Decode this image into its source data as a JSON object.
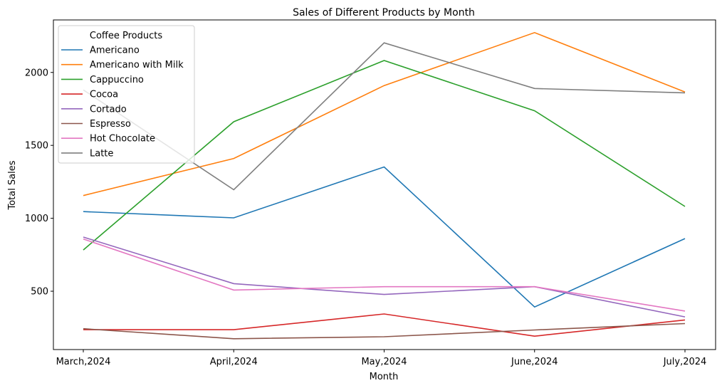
{
  "chart_data": {
    "type": "line",
    "title": "Sales of Different Products by Month",
    "xlabel": "Month",
    "ylabel": "Total Sales",
    "categories": [
      "March,2024",
      "April,2024",
      "May,2024",
      "June,2024",
      "July,2024"
    ],
    "ylim": [
      100,
      2360
    ],
    "yticks": [
      500,
      1000,
      1500,
      2000
    ],
    "grid": false,
    "legend": {
      "title": "Coffee Products",
      "placement": "upper-left"
    },
    "series": [
      {
        "name": "Americano",
        "color": "#1f77b4",
        "values": [
          1046,
          1003,
          1352,
          392,
          861
        ]
      },
      {
        "name": "Americano with Milk",
        "color": "#ff7f0e",
        "values": [
          1156,
          1410,
          1910,
          2273,
          1866
        ]
      },
      {
        "name": "Cappuccino",
        "color": "#2ca02c",
        "values": [
          783,
          1662,
          2082,
          1737,
          1081
        ]
      },
      {
        "name": "Cocoa",
        "color": "#d62728",
        "values": [
          236,
          236,
          344,
          192,
          303
        ]
      },
      {
        "name": "Cortado",
        "color": "#9467bd",
        "values": [
          871,
          552,
          478,
          531,
          324
        ]
      },
      {
        "name": "Espresso",
        "color": "#8c564b",
        "values": [
          243,
          174,
          188,
          234,
          278
        ]
      },
      {
        "name": "Hot Chocolate",
        "color": "#e377c2",
        "values": [
          858,
          508,
          531,
          531,
          364
        ]
      },
      {
        "name": "Latte",
        "color": "#7f7f7f",
        "values": [
          1880,
          1196,
          2203,
          1890,
          1860
        ]
      }
    ]
  }
}
